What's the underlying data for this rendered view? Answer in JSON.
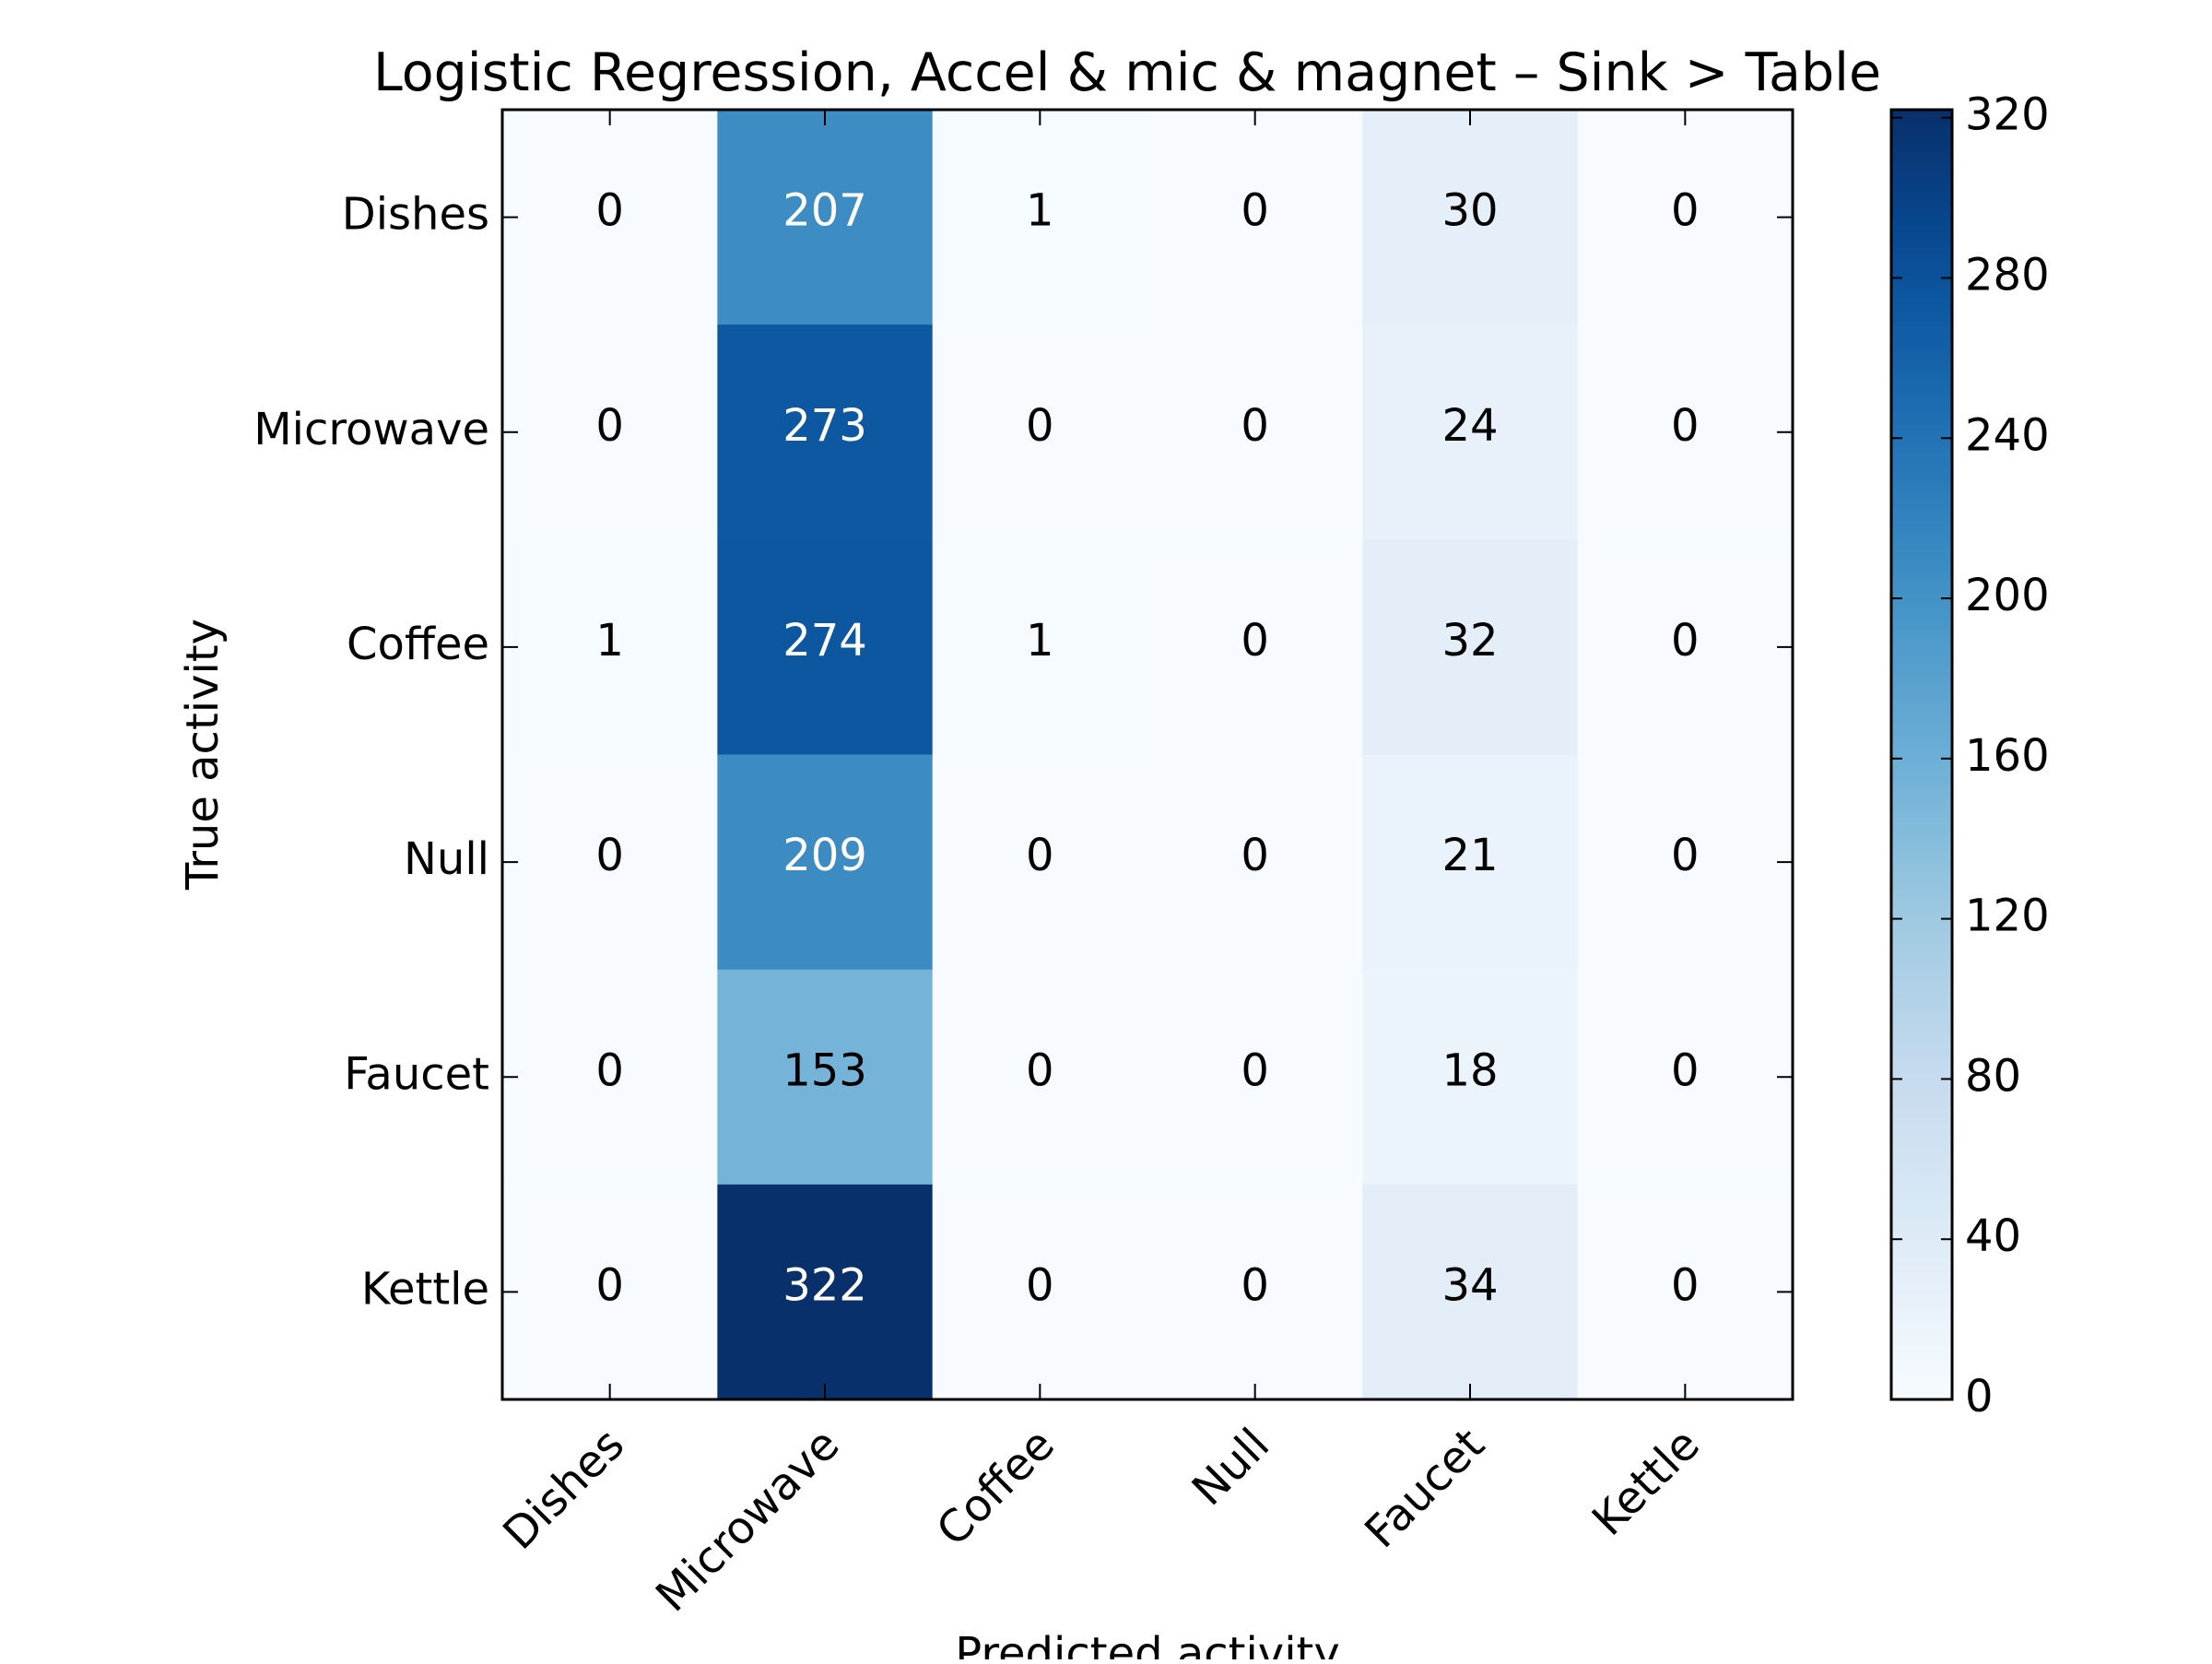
{
  "chart_data": {
    "type": "heatmap",
    "title": "Logistic Regression, Accel & mic & magnet – Sink > Table",
    "xlabel": "Predicted activity",
    "ylabel": "True activity",
    "x_categories": [
      "Dishes",
      "Microwave",
      "Coffee",
      "Null",
      "Faucet",
      "Kettle"
    ],
    "y_categories": [
      "Dishes",
      "Microwave",
      "Coffee",
      "Null",
      "Faucet",
      "Kettle"
    ],
    "values": [
      [
        0,
        207,
        1,
        0,
        30,
        0
      ],
      [
        0,
        273,
        0,
        0,
        24,
        0
      ],
      [
        1,
        274,
        1,
        0,
        32,
        0
      ],
      [
        0,
        209,
        0,
        0,
        21,
        0
      ],
      [
        0,
        153,
        0,
        0,
        18,
        0
      ],
      [
        0,
        322,
        0,
        0,
        34,
        0
      ]
    ],
    "colormap": "Blues",
    "colorbar": {
      "min": 0,
      "max": 322,
      "ticks": [
        0,
        40,
        80,
        120,
        160,
        200,
        240,
        280,
        320
      ]
    },
    "grid": false
  }
}
